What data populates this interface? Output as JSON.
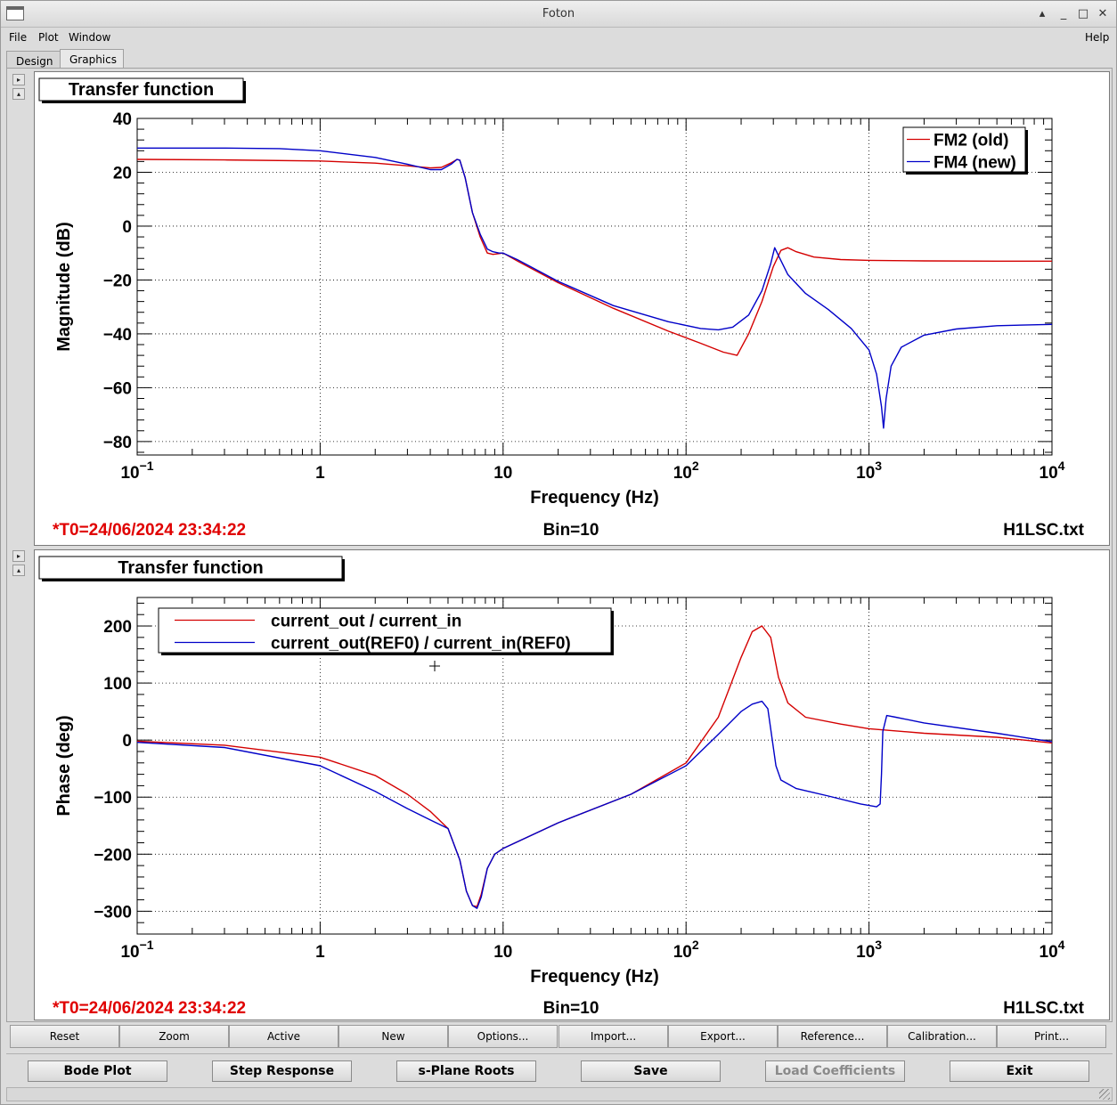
{
  "window": {
    "title": "Foton"
  },
  "titlebar_buttons": {
    "shade": "▴",
    "minimize": "_",
    "maximize": "□",
    "close": "✕"
  },
  "menu": {
    "file": "File",
    "plot": "Plot",
    "window": "Window",
    "help": "Help"
  },
  "tabs": {
    "design": "Design",
    "graphics": "Graphics"
  },
  "panels": [
    {
      "heading": "Transfer function",
      "ylabel": "Magnitude (dB)",
      "xlabel": "Frequency (Hz)",
      "status_left": "*T0=24/06/2024 23:34:22",
      "status_center": "Bin=10",
      "status_right": "H1LSC.txt",
      "legend": [
        "FM2 (old)",
        "FM4 (new)"
      ]
    },
    {
      "heading": "Transfer function",
      "ylabel": "Phase (deg)",
      "xlabel": "Frequency (Hz)",
      "status_left": "*T0=24/06/2024 23:34:22",
      "status_center": "Bin=10",
      "status_right": "H1LSC.txt",
      "legend": [
        "current_out / current_in",
        "current_out(REF0) / current_in(REF0)"
      ]
    }
  ],
  "toolbar": [
    "Reset",
    "Zoom",
    "Active",
    "New",
    "Options...",
    "Import...",
    "Export...",
    "Reference...",
    "Calibration...",
    "Print..."
  ],
  "actions": {
    "bode": "Bode Plot",
    "step": "Step Response",
    "splane": "s-Plane Roots",
    "save": "Save",
    "load": "Load Coefficients",
    "exit": "Exit"
  },
  "colors": {
    "red": "#d40000",
    "blue": "#0000c8",
    "status_red": "#e00000"
  },
  "chart_data": [
    {
      "type": "line",
      "xscale": "log",
      "xlim": [
        0.1,
        10000
      ],
      "ylim": [
        -85,
        40
      ],
      "yticks": [
        40,
        20,
        0,
        -20,
        -40,
        -60,
        -80
      ],
      "ytick_labels": [
        "40",
        "20",
        "0",
        "−20",
        "−40",
        "−60",
        "−80"
      ],
      "xtick_labels": [
        "10^-1",
        "1",
        "10",
        "10^2",
        "10^3",
        "10^4"
      ],
      "series": [
        {
          "name": "FM2 (old)",
          "color": "#d40000",
          "x": [
            0.1,
            0.3,
            1,
            2,
            3,
            4,
            4.6,
            5.2,
            5.6,
            5.8,
            6.2,
            6.8,
            7.5,
            8.2,
            8.8,
            9.5,
            10,
            12,
            20,
            40,
            80,
            120,
            160,
            190,
            220,
            260,
            300,
            330,
            360,
            400,
            500,
            700,
            1000,
            2000,
            5000,
            10000
          ],
          "y": [
            24.8,
            24.6,
            24.2,
            23.4,
            22.4,
            21.6,
            21.8,
            23.5,
            24.8,
            24.5,
            18,
            5,
            -4,
            -10,
            -10.5,
            -10.2,
            -10,
            -13,
            -21,
            -30.5,
            -39,
            -43.5,
            -46.8,
            -48,
            -40,
            -28,
            -15,
            -9,
            -8,
            -9.5,
            -11.5,
            -12.4,
            -12.7,
            -12.9,
            -13,
            -13
          ]
        },
        {
          "name": "FM4 (new)",
          "color": "#0000c8",
          "x": [
            0.1,
            0.3,
            0.6,
            1,
            2,
            3,
            4,
            4.6,
            5.2,
            5.6,
            5.8,
            6.2,
            6.8,
            7.5,
            8.2,
            8.8,
            9.5,
            10,
            12,
            20,
            40,
            80,
            120,
            150,
            180,
            220,
            260,
            290,
            305,
            320,
            360,
            450,
            600,
            800,
            1000,
            1100,
            1170,
            1200,
            1240,
            1320,
            1500,
            2000,
            3000,
            5000,
            10000
          ],
          "y": [
            29,
            29,
            28.8,
            28,
            25.5,
            23,
            21,
            21,
            23,
            24.8,
            24.5,
            18,
            5,
            -3,
            -8.5,
            -9.5,
            -10,
            -10,
            -12.5,
            -20.5,
            -29.5,
            -35.5,
            -38,
            -38.5,
            -37.5,
            -33,
            -24,
            -14,
            -8,
            -11,
            -18,
            -25,
            -31,
            -38,
            -46,
            -55,
            -67,
            -75,
            -64,
            -52,
            -45,
            -40.5,
            -38.2,
            -37,
            -36.5
          ]
        }
      ]
    },
    {
      "type": "line",
      "xscale": "log",
      "xlim": [
        0.1,
        10000
      ],
      "ylim": [
        -340,
        250
      ],
      "yticks": [
        200,
        100,
        0,
        -100,
        -200,
        -300
      ],
      "ytick_labels": [
        "200",
        "100",
        "0",
        "−100",
        "−200",
        "−300"
      ],
      "xtick_labels": [
        "10^-1",
        "1",
        "10",
        "10^2",
        "10^3",
        "10^4"
      ],
      "series": [
        {
          "name": "current_out / current_in",
          "color": "#d40000",
          "x": [
            0.1,
            0.3,
            1,
            2,
            3,
            4,
            5,
            5.8,
            6.3,
            6.8,
            7.2,
            7.6,
            8.2,
            9,
            10,
            20,
            50,
            100,
            150,
            200,
            230,
            260,
            290,
            320,
            360,
            450,
            700,
            1000,
            2000,
            5000,
            10000
          ],
          "y": [
            -2,
            -9,
            -30,
            -62,
            -95,
            -125,
            -155,
            -210,
            -265,
            -290,
            -292,
            -270,
            -225,
            -200,
            -190,
            -145,
            -95,
            -40,
            40,
            145,
            190,
            200,
            180,
            110,
            65,
            40,
            28,
            20,
            12,
            5,
            -5
          ]
        },
        {
          "name": "current_out(REF0) / current_in(REF0)",
          "color": "#0000c8",
          "x": [
            0.1,
            0.3,
            1,
            2,
            3,
            4,
            5,
            5.8,
            6.3,
            6.8,
            7.2,
            7.6,
            8.2,
            9,
            10,
            20,
            50,
            100,
            150,
            200,
            230,
            260,
            280,
            290,
            310,
            330,
            400,
            600,
            900,
            1100,
            1150,
            1170,
            1190,
            1250,
            1400,
            2000,
            5000,
            10000
          ],
          "y": [
            -4,
            -13,
            -45,
            -90,
            -120,
            -140,
            -155,
            -210,
            -265,
            -290,
            -295,
            -275,
            -225,
            -200,
            -190,
            -145,
            -95,
            -45,
            10,
            50,
            63,
            68,
            55,
            20,
            -45,
            -70,
            -85,
            -98,
            -112,
            -117,
            -112,
            -60,
            15,
            43,
            40,
            30,
            12,
            -3
          ]
        }
      ]
    }
  ]
}
